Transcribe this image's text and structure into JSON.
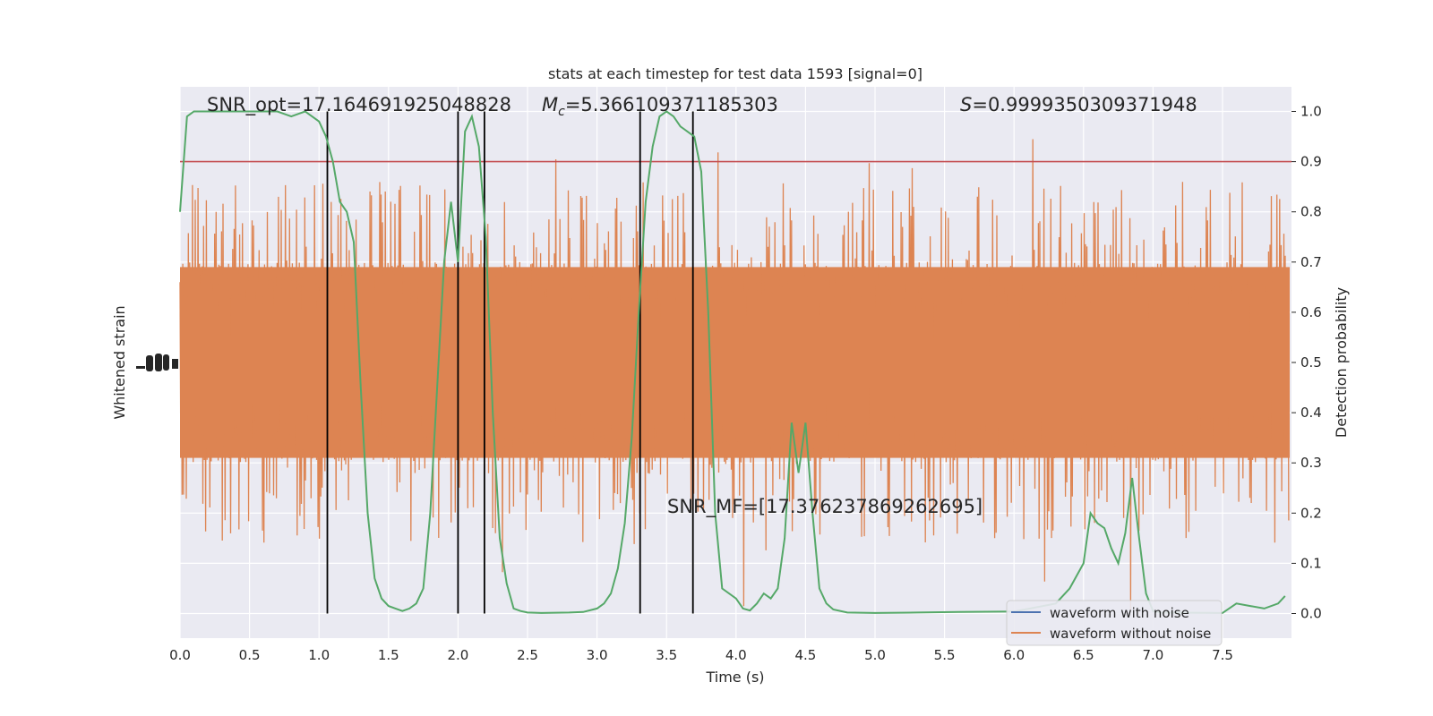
{
  "chart_data": {
    "type": "line",
    "title": "stats at each timestep for test data 1593 [signal=0]",
    "xlabel": "Time (s)",
    "ylabel_left": "Whitened strain",
    "ylabel_right": "Detection probability",
    "xlim": [
      0.0,
      8.0
    ],
    "ylim_right": [
      -0.05,
      1.05
    ],
    "x_ticks": [
      "0.0",
      "0.5",
      "1.0",
      "1.5",
      "2.0",
      "2.5",
      "3.0",
      "3.5",
      "4.0",
      "4.5",
      "5.0",
      "5.5",
      "6.0",
      "6.5",
      "7.0",
      "7.5"
    ],
    "y_ticks_right": [
      "0.0",
      "0.1",
      "0.2",
      "0.3",
      "0.4",
      "0.5",
      "0.6",
      "0.7",
      "0.8",
      "0.9",
      "1.0"
    ],
    "grid": true,
    "annotations": {
      "snr_opt": "SNR_opt=17.164691925048828",
      "mc_symbol": "M",
      "mc_sub": "c",
      "mc_value": "=5.366109371185303",
      "s_symbol": "S",
      "s_value": "=0.9999350309371948",
      "snr_mf": "SNR_MF=[17.376237869262695]"
    },
    "threshold": {
      "y": 0.9,
      "color": "#c44e52"
    },
    "vertical_lines_x": [
      1.06,
      2.0,
      2.19,
      3.31,
      3.69
    ],
    "legend": {
      "position": "lower right",
      "entries": [
        {
          "label": "waveform with noise",
          "color": "#4c72b0"
        },
        {
          "label": "waveform without noise",
          "color": "#dd8452"
        }
      ]
    },
    "noise_band": {
      "center": 0.5,
      "core_half_width": 0.19,
      "spike_max": 0.5,
      "color": "#dd8452"
    },
    "detection_probability": {
      "color": "#55a868",
      "x": [
        0.0,
        0.05,
        0.1,
        0.2,
        0.3,
        0.5,
        0.7,
        0.8,
        0.9,
        0.95,
        1.0,
        1.05,
        1.1,
        1.15,
        1.2,
        1.25,
        1.3,
        1.35,
        1.4,
        1.45,
        1.5,
        1.55,
        1.6,
        1.65,
        1.7,
        1.75,
        1.8,
        1.85,
        1.9,
        1.95,
        2.0,
        2.05,
        2.1,
        2.15,
        2.2,
        2.25,
        2.3,
        2.35,
        2.4,
        2.45,
        2.5,
        2.6,
        2.8,
        2.9,
        3.0,
        3.05,
        3.1,
        3.15,
        3.2,
        3.25,
        3.3,
        3.35,
        3.4,
        3.45,
        3.5,
        3.55,
        3.6,
        3.65,
        3.7,
        3.75,
        3.8,
        3.85,
        3.9,
        4.0,
        4.05,
        4.1,
        4.15,
        4.2,
        4.25,
        4.3,
        4.35,
        4.4,
        4.45,
        4.5,
        4.55,
        4.6,
        4.65,
        4.7,
        4.8,
        5.0,
        5.3,
        5.6,
        6.0,
        6.3,
        6.4,
        6.5,
        6.55,
        6.6,
        6.65,
        6.7,
        6.75,
        6.8,
        6.85,
        6.9,
        6.95,
        7.0,
        7.05,
        7.5,
        7.6,
        7.7,
        7.8,
        7.9,
        7.95
      ],
      "y": [
        0.8,
        0.99,
        1.0,
        1.0,
        1.0,
        1.0,
        1.0,
        0.99,
        1.0,
        0.99,
        0.98,
        0.95,
        0.9,
        0.82,
        0.8,
        0.74,
        0.45,
        0.2,
        0.07,
        0.03,
        0.015,
        0.01,
        0.005,
        0.01,
        0.02,
        0.05,
        0.2,
        0.45,
        0.7,
        0.82,
        0.7,
        0.96,
        0.99,
        0.93,
        0.75,
        0.4,
        0.15,
        0.06,
        0.01,
        0.005,
        0.002,
        0.001,
        0.002,
        0.003,
        0.01,
        0.02,
        0.04,
        0.09,
        0.18,
        0.35,
        0.6,
        0.82,
        0.93,
        0.99,
        1.0,
        0.99,
        0.97,
        0.96,
        0.95,
        0.88,
        0.6,
        0.2,
        0.05,
        0.03,
        0.01,
        0.006,
        0.02,
        0.04,
        0.03,
        0.05,
        0.15,
        0.38,
        0.28,
        0.38,
        0.2,
        0.05,
        0.02,
        0.008,
        0.002,
        0.001,
        0.002,
        0.003,
        0.004,
        0.02,
        0.05,
        0.1,
        0.2,
        0.18,
        0.17,
        0.13,
        0.1,
        0.16,
        0.27,
        0.15,
        0.04,
        0.005,
        0.002,
        0.001,
        0.02,
        0.015,
        0.01,
        0.02,
        0.035
      ]
    }
  }
}
